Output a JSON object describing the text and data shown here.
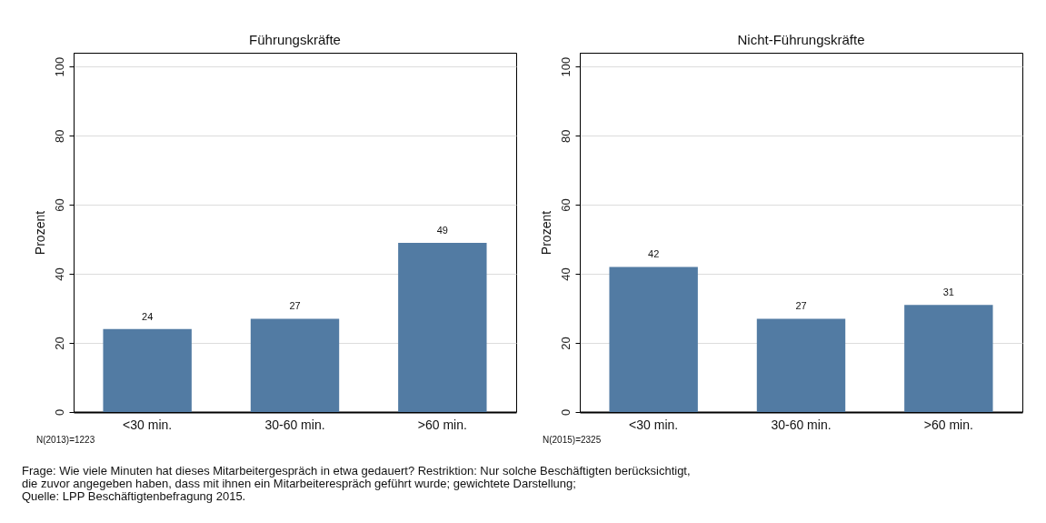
{
  "chart_data": [
    {
      "type": "bar",
      "title": "Führungskräfte",
      "ylabel": "Prozent",
      "categories": [
        "<30 min.",
        "30-60 min.",
        ">60 min."
      ],
      "values": [
        24,
        27,
        49
      ],
      "color": "#527ba3",
      "ylim": [
        0,
        104
      ],
      "yticks": [
        0,
        20,
        40,
        60,
        80,
        100
      ],
      "grid": "y",
      "data_labels": true,
      "annotations": [
        "N(2013)=1223",
        "Frage: Wie viele Minuten hat dieses Mitarbeitergespräch in etwa gedauert? Restriktion: Nur solche Beschäftigten berücksichtigt,",
        "die zuvor angegeben haben, dass mit ihnen ein Mitarbeiterespräch geführt wurde; gewichtete Darstellung;",
        "Quelle: LPP Beschäftigtenbefragung 2015."
      ]
    },
    {
      "type": "bar",
      "title": "Nicht-Führungskräfte",
      "ylabel": "Prozent",
      "categories": [
        "<30 min.",
        "30-60 min.",
        ">60 min."
      ],
      "values": [
        42,
        27,
        31
      ],
      "color": "#527ba3",
      "ylim": [
        0,
        104
      ],
      "yticks": [
        0,
        20,
        40,
        60,
        80,
        100
      ],
      "grid": "y",
      "data_labels": true,
      "annotations": [
        "N(2015)=2325"
      ]
    }
  ]
}
